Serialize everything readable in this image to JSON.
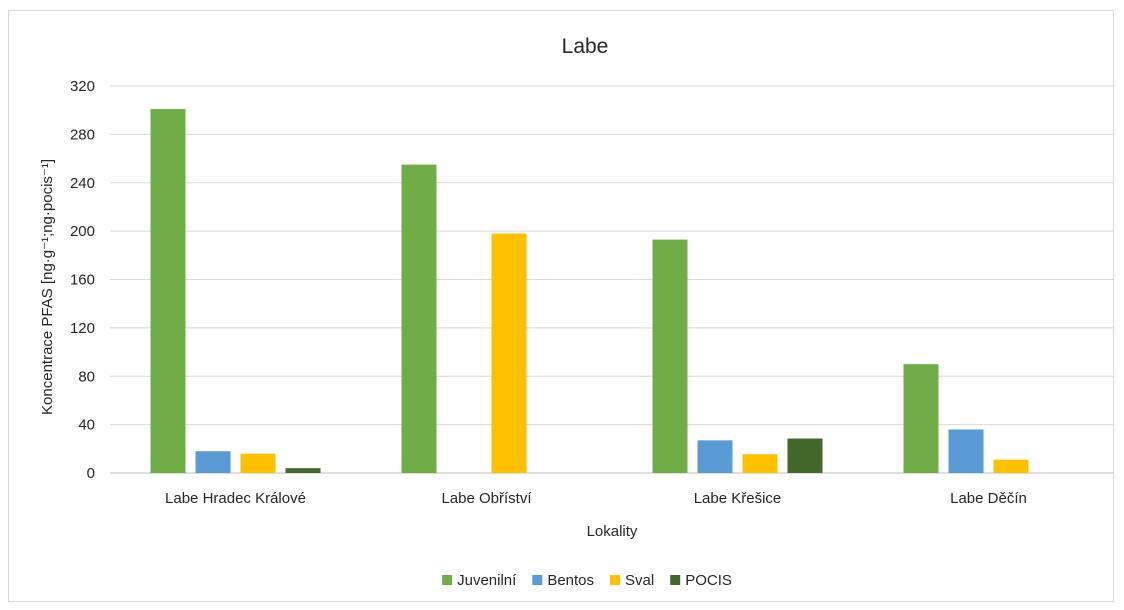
{
  "chart_data": {
    "type": "bar",
    "title": "Labe",
    "xlabel": "Lokality",
    "ylabel": "Koncentrace PFAS [ng·g⁻¹;ng·pocis⁻¹]",
    "categories": [
      "Labe Hradec Králové",
      "Labe Obříství",
      "Labe Křešice",
      "Labe Děčín"
    ],
    "series": [
      {
        "name": "Juvenilní",
        "color": "#70ad47",
        "values": [
          301,
          255,
          193,
          90
        ]
      },
      {
        "name": "Bentos",
        "color": "#5b9bd5",
        "values": [
          18,
          0,
          27,
          36
        ]
      },
      {
        "name": "Sval",
        "color": "#ffc000",
        "values": [
          16,
          198,
          15.5,
          11
        ]
      },
      {
        "name": "POCIS",
        "color": "#43682b",
        "values": [
          4,
          0,
          28.5,
          0
        ]
      }
    ],
    "ylim": [
      0,
      320
    ],
    "yticks": [
      0,
      40,
      80,
      120,
      160,
      200,
      240,
      280,
      320
    ],
    "grid": true,
    "legend_position": "bottom"
  }
}
